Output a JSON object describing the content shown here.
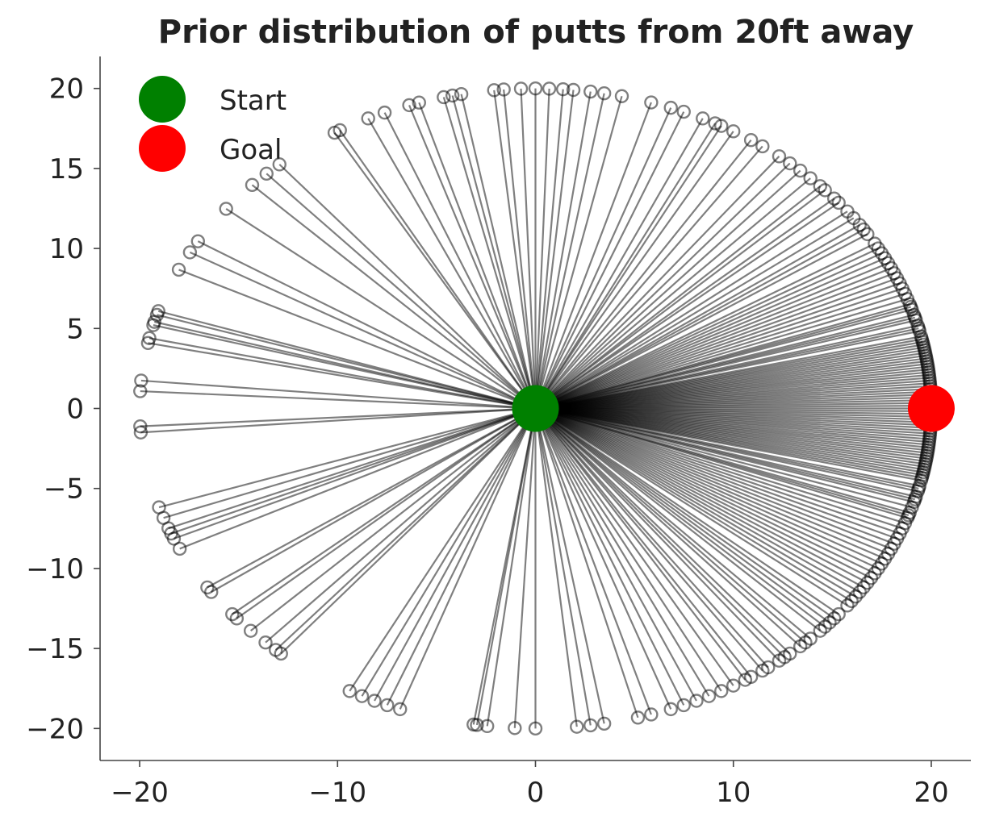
{
  "chart_data": {
    "type": "scatter",
    "title": "Prior distribution of putts from 20ft away",
    "xlabel": "",
    "ylabel": "",
    "xlim": [
      -22,
      22
    ],
    "ylim": [
      -22,
      22
    ],
    "x_ticks": [
      -20,
      -10,
      0,
      10,
      20
    ],
    "y_ticks": [
      -20,
      -15,
      -10,
      -5,
      0,
      5,
      10,
      15,
      20
    ],
    "x_tick_labels": [
      "−20",
      "−10",
      "0",
      "10",
      "20"
    ],
    "y_tick_labels": [
      "−20",
      "−15",
      "−10",
      "−5",
      "0",
      "5",
      "10",
      "15",
      "20"
    ],
    "grid": false,
    "legend_position": "top-left",
    "start": {
      "name": "Start",
      "x": 0,
      "y": 0,
      "color": "#008000"
    },
    "goal": {
      "name": "Goal",
      "x": 20,
      "y": 0,
      "color": "#ff0000"
    },
    "putt_color": "#000000",
    "putt_radius": 20,
    "putt_angles_deg": [
      -175.7,
      -176.8,
      175.0,
      176.9,
      168.2,
      164.3,
      162.3,
      163.0,
      167.3,
      164.9,
      154.3,
      150.8,
      148.5,
      141.4,
      135.7,
      132.8,
      130.3,
      120.5,
      119.6,
      115.0,
      112.4,
      108.6,
      107.1,
      103.4,
      102.1,
      100.8,
      96.0,
      94.6,
      92.1,
      90.0,
      88.0,
      86.0,
      84.5,
      82.0,
      80.0,
      77.4,
      73.0,
      70.0,
      68.0,
      65.0,
      63.0,
      62.0,
      60.0,
      57.0,
      55.0,
      52.0,
      50.0,
      48.0,
      46.0,
      44.0,
      43.0,
      41.0,
      40.0,
      38.0,
      36.5,
      35.0,
      34.0,
      33.0,
      31.0,
      30.0,
      29.0,
      28.0,
      27.0,
      26.0,
      25.0,
      24.0,
      23.0,
      22.0,
      21.0,
      20.0,
      19.0,
      18.5,
      18.0,
      17.0,
      16.5,
      16.0,
      15.0,
      14.5,
      14.0,
      13.0,
      12.5,
      12.0,
      11.5,
      11.0,
      10.5,
      10.0,
      9.5,
      9.0,
      8.5,
      8.0,
      7.5,
      7.0,
      6.5,
      6.0,
      5.5,
      5.0,
      4.5,
      4.0,
      3.5,
      3.0,
      2.5,
      2.0,
      1.5,
      1.0,
      0.5,
      0.0,
      -0.5,
      -1.0,
      -1.5,
      -2.0,
      -2.5,
      -3.0,
      -3.5,
      -4.0,
      -4.5,
      -5.0,
      -5.5,
      -6.0,
      -6.5,
      -7.0,
      -7.5,
      -8.0,
      -8.5,
      -9.0,
      -9.5,
      -10.0,
      -10.5,
      -11.0,
      -11.5,
      -12.0,
      -12.5,
      -13.0,
      -14.0,
      -14.5,
      -15.0,
      -16.0,
      -16.5,
      -17.0,
      -18.0,
      -19.0,
      -19.5,
      -20.0,
      -21.0,
      -22.0,
      -23.0,
      -24.0,
      -25.0,
      -26.0,
      -27.0,
      -28.0,
      -29.0,
      -30.0,
      -31.0,
      -32.0,
      -33.0,
      -34.0,
      -35.0,
      -36.0,
      -37.0,
      -38.0,
      -40.0,
      -41.0,
      -42.0,
      -43.0,
      -44.0,
      -46.0,
      -47.0,
      -48.0,
      -50.0,
      -51.0,
      -52.0,
      -54.0,
      -55.0,
      -57.0,
      -58.0,
      -60.0,
      -62.0,
      -64.0,
      -66.0,
      -68.0,
      -70.0,
      -73.0,
      -75.0,
      -80.0,
      -82.0,
      -84.0,
      -90.0,
      -93.0,
      -97.0,
      -98.5,
      -99.0,
      -110.0,
      -112.0,
      -114.0,
      -116.0,
      -118.0,
      -130.0,
      -131.0,
      -133.0,
      -136.0,
      -139.0,
      -140.0,
      -145.0,
      -146.0,
      -156.0,
      -157.0,
      -158.0,
      -154.0,
      -160.0,
      -162.0
    ]
  }
}
